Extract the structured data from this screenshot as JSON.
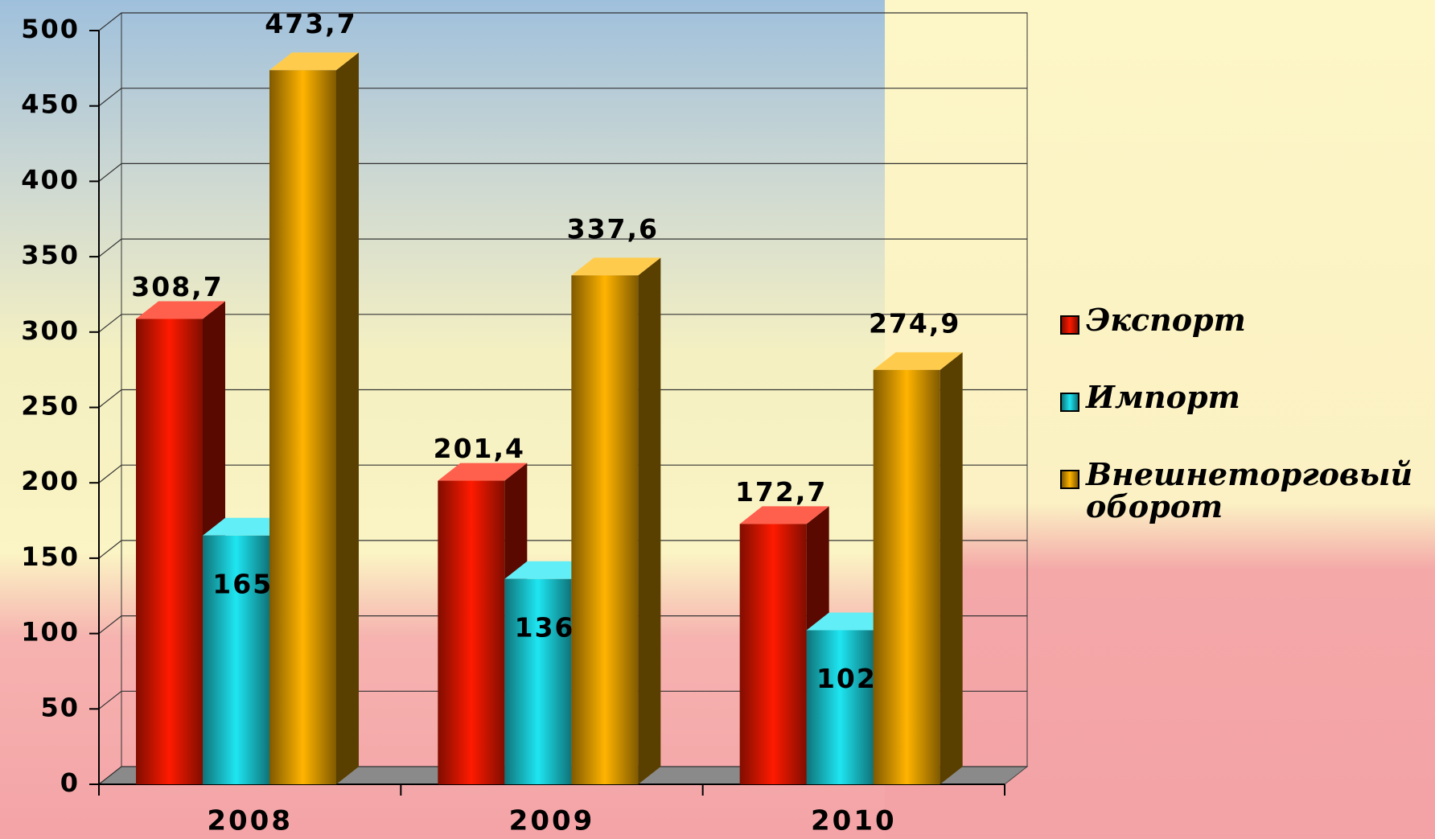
{
  "chart_data": {
    "type": "bar3d",
    "categories": [
      "2008",
      "2009",
      "2010"
    ],
    "series": [
      {
        "name": "Экспорт",
        "color": "#ff1a00",
        "values": [
          308.7,
          201.4,
          172.7
        ],
        "value_labels": [
          "308,7",
          "201,4",
          "172,7"
        ]
      },
      {
        "name": "Импорт",
        "color": "#1ee6f2",
        "values": [
          165.0,
          136.2,
          102.2
        ],
        "value_labels": [
          "165,0",
          "136,2",
          "102,2"
        ]
      },
      {
        "name": "Внешнеторговый оборот",
        "color": "#ffb400",
        "values": [
          473.7,
          337.6,
          274.9
        ],
        "value_labels": [
          "473,7",
          "337,6",
          "274,9"
        ]
      }
    ],
    "ylim": [
      0,
      500
    ],
    "yticks": [
      0,
      50,
      100,
      150,
      200,
      250,
      300,
      350,
      400,
      450,
      500
    ],
    "grid": true
  }
}
